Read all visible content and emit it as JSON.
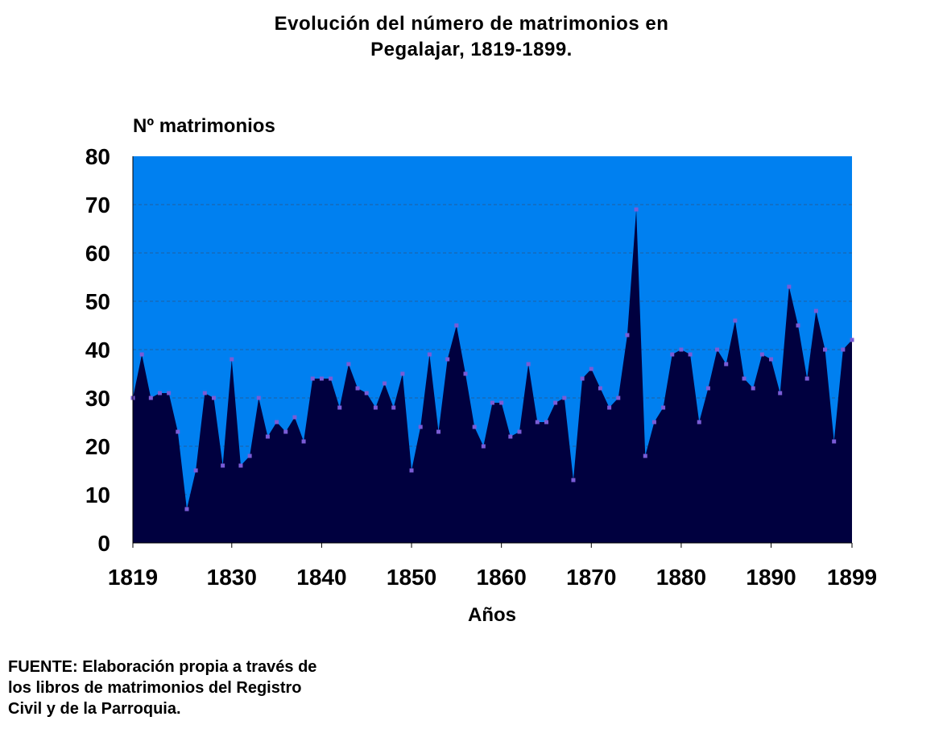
{
  "chart_data": {
    "type": "area",
    "title_lines": [
      "Evolución del número de matrimonios en",
      "Pegalajar, 1819-1899."
    ],
    "ylabel": "Nº matrimonios",
    "xlabel": "Años",
    "ylim": [
      0,
      80
    ],
    "xlim": [
      1819,
      1899
    ],
    "y_ticks": [
      "0",
      "10",
      "20",
      "30",
      "40",
      "50",
      "60",
      "70",
      "80"
    ],
    "x_ticks": [
      "1819",
      "1830",
      "1840",
      "1850",
      "1860",
      "1870",
      "1880",
      "1890",
      "1899"
    ],
    "grid": true,
    "colors": {
      "plot_background": "#0080f0",
      "area_fill": "#00003f",
      "marker": "#7a5cd6",
      "gridline": "#2060a0"
    },
    "series": [
      {
        "x": [
          1819,
          1820,
          1821,
          1822,
          1823,
          1824,
          1825,
          1826,
          1827,
          1828,
          1829,
          1830,
          1831,
          1832,
          1833,
          1834,
          1835,
          1836,
          1837,
          1838,
          1839,
          1840,
          1841,
          1842,
          1843,
          1844,
          1845,
          1846,
          1847,
          1848,
          1849,
          1850,
          1851,
          1852,
          1853,
          1854,
          1855,
          1856,
          1857,
          1858,
          1859,
          1860,
          1861,
          1862,
          1863,
          1864,
          1865,
          1866,
          1867,
          1868,
          1869,
          1870,
          1871,
          1872,
          1873,
          1874,
          1875,
          1876,
          1877,
          1878,
          1879,
          1880,
          1881,
          1882,
          1883,
          1884,
          1885,
          1886,
          1887,
          1888,
          1889,
          1890,
          1891,
          1892,
          1893,
          1894,
          1895,
          1896,
          1897,
          1898,
          1899
        ],
        "values": [
          30,
          39,
          30,
          31,
          31,
          23,
          7,
          15,
          31,
          30,
          16,
          38,
          16,
          18,
          30,
          22,
          25,
          23,
          26,
          21,
          34,
          34,
          34,
          28,
          37,
          32,
          31,
          28,
          33,
          28,
          35,
          15,
          24,
          39,
          23,
          38,
          45,
          35,
          24,
          20,
          29,
          29,
          22,
          23,
          37,
          25,
          25,
          29,
          30,
          13,
          34,
          36,
          32,
          28,
          30,
          43,
          69,
          18,
          25,
          28,
          39,
          40,
          39,
          25,
          32,
          40,
          37,
          46,
          34,
          32,
          39,
          38,
          31,
          53,
          45,
          34,
          48,
          40,
          21,
          40,
          42
        ]
      }
    ]
  },
  "footer": {
    "source_lines": [
      "FUENTE: Elaboración propia a través de",
      "los libros de matrimonios del Registro",
      "Civil y de la Parroquia."
    ]
  }
}
